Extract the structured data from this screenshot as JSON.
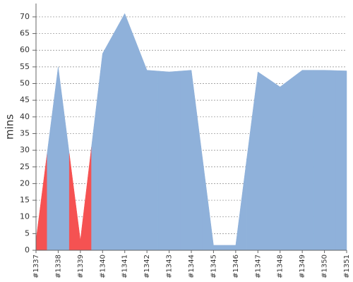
{
  "chart_data": {
    "type": "area",
    "y_label": "mins",
    "categories": [
      "#1337",
      "#1338",
      "#1339",
      "#1340",
      "#1341",
      "#1342",
      "#1343",
      "#1344",
      "#1345",
      "#1346",
      "#1347",
      "#1348",
      "#1349",
      "#1350",
      "#1351"
    ],
    "values": [
      3,
      55,
      3,
      59,
      71,
      54,
      53.5,
      54,
      1.5,
      1.5,
      53.5,
      49,
      54,
      54,
      53.8
    ],
    "point_colors": [
      "#f55252",
      "#8fb1da",
      "#f55252",
      "#8fb1da",
      "#8fb1da",
      "#8fb1da",
      "#8fb1da",
      "#8fb1da",
      "#8fb1da",
      "#8fb1da",
      "#8fb1da",
      "#8fb1da",
      "#8fb1da",
      "#8fb1da",
      "#8fb1da"
    ],
    "ylim": [
      0,
      74
    ],
    "yticks": [
      0,
      5,
      10,
      15,
      20,
      25,
      30,
      35,
      40,
      45,
      50,
      55,
      60,
      65,
      70
    ],
    "grid": true
  }
}
